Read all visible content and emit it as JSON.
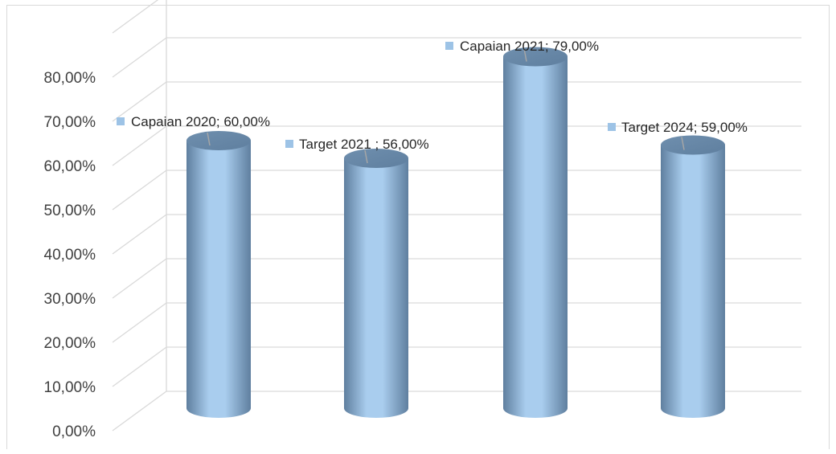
{
  "chart_data": {
    "type": "bar",
    "style": "3d-cylinder",
    "categories": [
      "Capaian 2020",
      "Target 2021 ",
      "Capaian 2021",
      "Target 2024"
    ],
    "values": [
      60.0,
      56.0,
      79.0,
      59.0
    ],
    "data_labels": [
      "Capaian 2020; 60,00%",
      "Target 2021 ; 56,00%",
      "Capaian 2021; 79,00%",
      "Target 2024; 59,00%"
    ],
    "y_ticks": [
      "0,00%",
      "10,00%",
      "20,00%",
      "30,00%",
      "40,00%",
      "50,00%",
      "60,00%",
      "70,00%",
      "80,00%"
    ],
    "ylim": [
      0,
      80
    ],
    "grid": true,
    "legend": "none",
    "colors": {
      "bar_fill_light": "#a9cdee",
      "bar_fill_dark": "#5f7f9f",
      "bar_top": "#6f8fae",
      "label_marker": "#9dc3e6",
      "grid": "#d9d9d9",
      "leader": "#a6a6a6"
    }
  }
}
